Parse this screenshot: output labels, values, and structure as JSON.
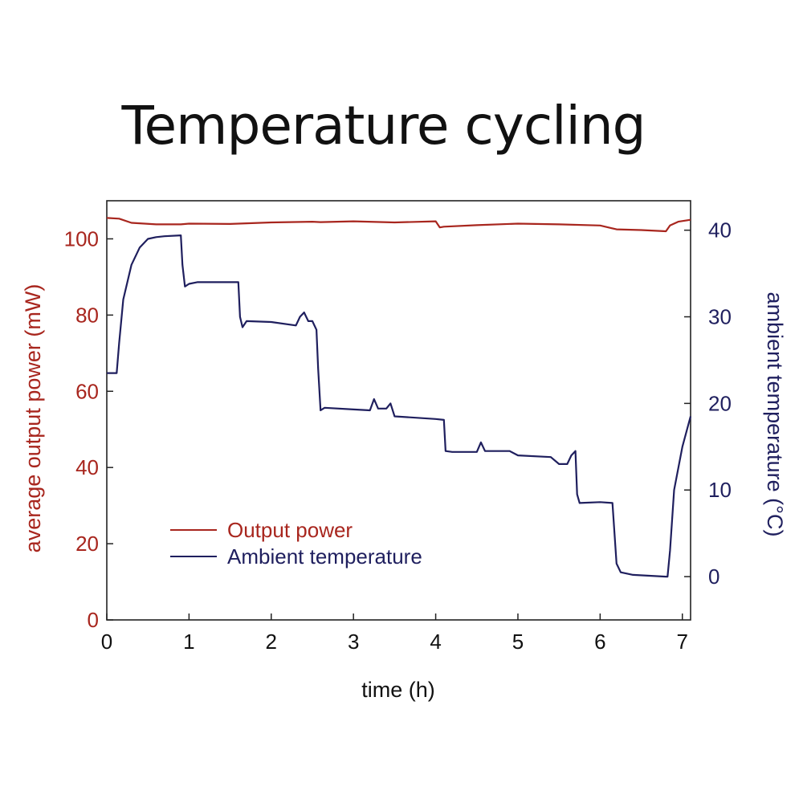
{
  "chart_data": {
    "type": "line",
    "title": "Temperature cycling",
    "xlabel": "time (h)",
    "ylabel_left": "average output power (mW)",
    "ylabel_right": "ambient temperature (°C)",
    "xlim": [
      0,
      7.1
    ],
    "ylim_left": [
      0,
      110
    ],
    "ylim_right": [
      -5,
      43.4
    ],
    "x_ticks": [
      "0",
      "1",
      "2",
      "3",
      "4",
      "5",
      "6",
      "7"
    ],
    "y_ticks_left": [
      "0",
      "20",
      "40",
      "60",
      "80",
      "100"
    ],
    "y_ticks_right": [
      "0",
      "10",
      "20",
      "30",
      "40"
    ],
    "legend_position": "lower-left",
    "grid": false,
    "series": [
      {
        "name": "Output power",
        "axis": "left",
        "color": "#a8261e",
        "x": [
          0,
          0.15,
          0.3,
          0.6,
          0.9,
          1.0,
          1.5,
          2.0,
          2.5,
          2.6,
          3.0,
          3.5,
          4.0,
          4.05,
          4.1,
          4.5,
          5.0,
          5.5,
          6.0,
          6.2,
          6.5,
          6.8,
          6.85,
          6.95,
          7.1
        ],
        "values": [
          105.5,
          105.3,
          104.2,
          103.8,
          103.8,
          104.0,
          103.9,
          104.3,
          104.5,
          104.4,
          104.6,
          104.3,
          104.6,
          103.0,
          103.2,
          103.6,
          104.0,
          103.8,
          103.5,
          102.5,
          102.3,
          102.0,
          103.5,
          104.5,
          105.0
        ]
      },
      {
        "name": "Ambient temperature",
        "axis": "right",
        "color": "#1f1f5e",
        "x": [
          0,
          0.12,
          0.15,
          0.2,
          0.3,
          0.4,
          0.5,
          0.6,
          0.7,
          0.9,
          0.92,
          0.95,
          1.0,
          1.1,
          1.3,
          1.6,
          1.62,
          1.65,
          1.7,
          2.0,
          2.3,
          2.35,
          2.4,
          2.45,
          2.5,
          2.55,
          2.57,
          2.6,
          2.65,
          3.0,
          3.2,
          3.25,
          3.3,
          3.4,
          3.45,
          3.5,
          4.0,
          4.1,
          4.12,
          4.2,
          4.5,
          4.55,
          4.6,
          4.9,
          5.0,
          5.4,
          5.5,
          5.6,
          5.65,
          5.7,
          5.72,
          5.75,
          6.0,
          6.15,
          6.2,
          6.25,
          6.4,
          6.8,
          6.82,
          6.85,
          6.9,
          7.0,
          7.1
        ],
        "values": [
          23.5,
          23.5,
          27,
          32,
          36,
          38,
          39,
          39.2,
          39.3,
          39.4,
          36,
          33.5,
          33.8,
          34,
          34,
          34,
          30,
          28.8,
          29.5,
          29.4,
          29,
          30,
          30.5,
          29.5,
          29.5,
          28.5,
          24,
          19.2,
          19.5,
          19.3,
          19.2,
          20.5,
          19.4,
          19.4,
          20,
          18.5,
          18.2,
          18.1,
          14.5,
          14.4,
          14.4,
          15.5,
          14.5,
          14.5,
          14,
          13.8,
          13,
          13,
          14,
          14.5,
          9.5,
          8.5,
          8.6,
          8.5,
          1.5,
          0.5,
          0.2,
          0,
          0,
          3,
          10,
          15,
          18.5
        ]
      }
    ]
  }
}
